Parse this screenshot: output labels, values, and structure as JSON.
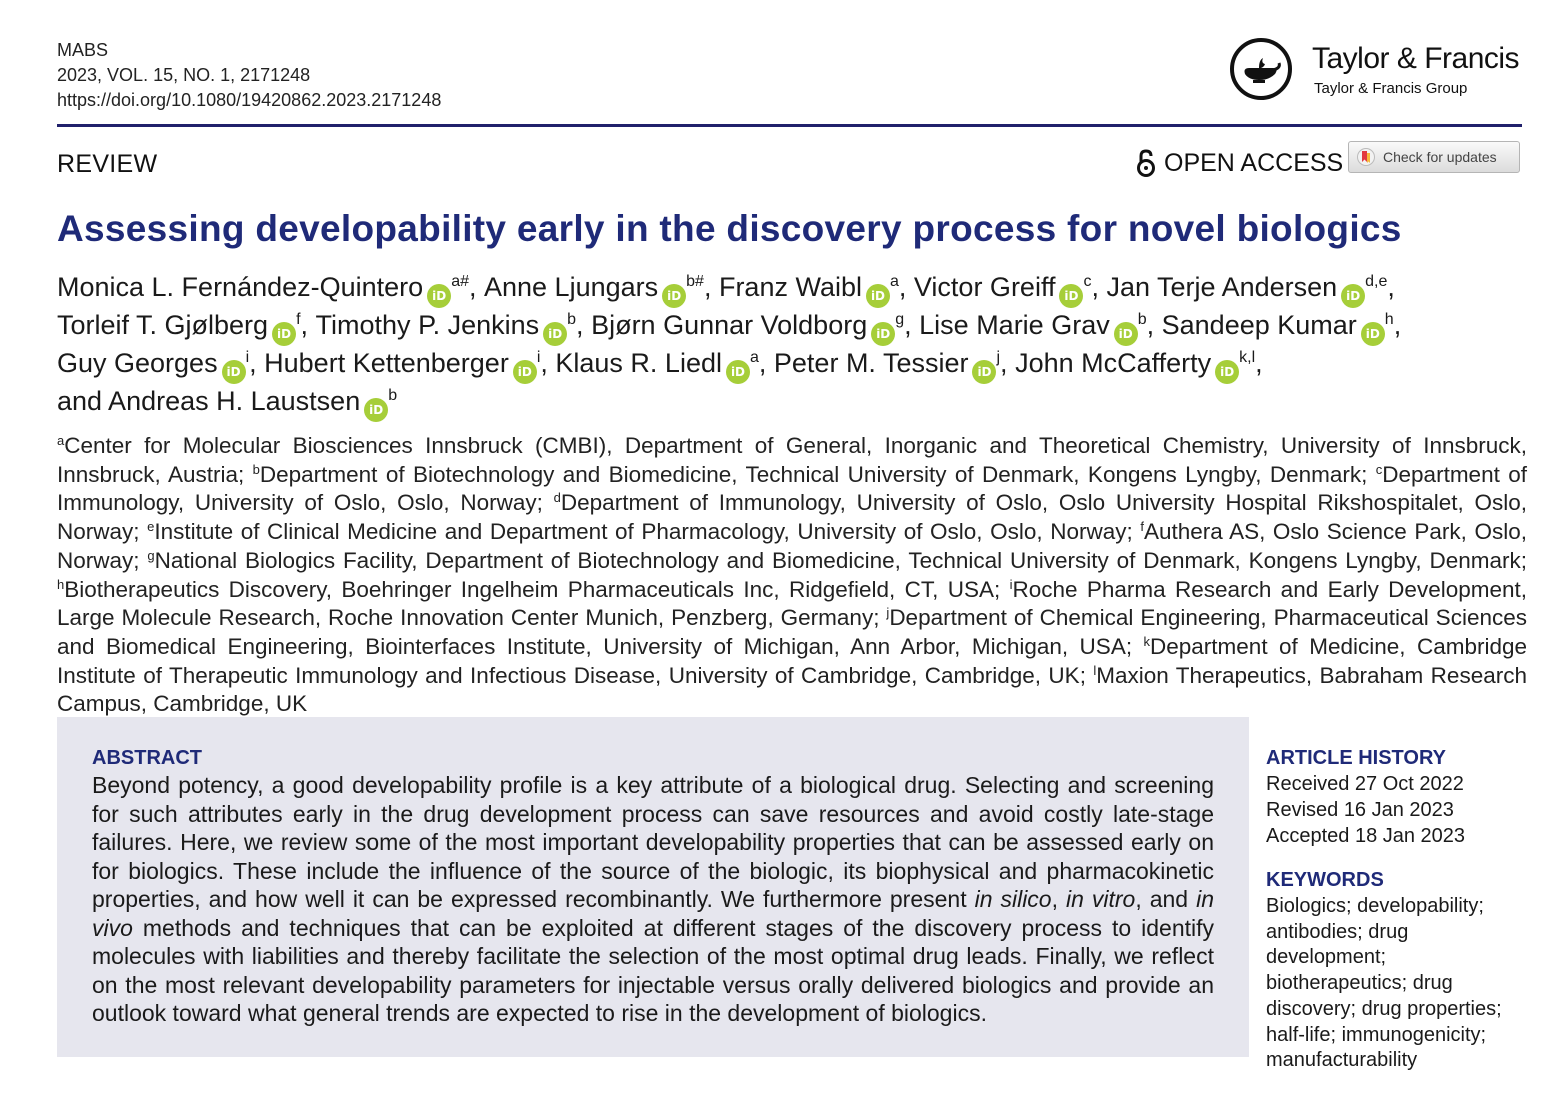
{
  "header": {
    "journal": "MABS",
    "volume_line": "2023, VOL. 15, NO. 1, 2171248",
    "doi": "https://doi.org/10.1080/19420862.2023.2171248",
    "publisher_name": "Taylor & Francis",
    "publisher_group": "Taylor & Francis Group"
  },
  "article_type": "REVIEW",
  "open_access_label": "OPEN ACCESS",
  "check_updates_label": "Check for updates",
  "title": "Assessing developability early in the discovery process for novel biologics",
  "orcid_badge": "iD",
  "authors": [
    {
      "name": "Monica L. Fernández-Quintero",
      "sup": "a#",
      "sep": ", "
    },
    {
      "name": "Anne Ljungars",
      "sup": "b#",
      "sep": ", "
    },
    {
      "name": "Franz Waibl",
      "sup": "a",
      "sep": ", "
    },
    {
      "name": "Victor Greiff",
      "sup": "c",
      "sep": ", "
    },
    {
      "name": "Jan Terje Andersen",
      "sup": "d,e",
      "sep": ", "
    },
    {
      "name": "Torleif T. Gjølberg",
      "sup": "f",
      "sep": ", "
    },
    {
      "name": "Timothy P. Jenkins",
      "sup": "b",
      "sep": ", "
    },
    {
      "name": "Bjørn Gunnar Voldborg",
      "sup": "g",
      "sep": ", "
    },
    {
      "name": "Lise Marie Grav",
      "sup": "b",
      "sep": ", "
    },
    {
      "name": "Sandeep Kumar",
      "sup": "h",
      "sep": ", "
    },
    {
      "name": "Guy Georges",
      "sup": "i",
      "sep": ", "
    },
    {
      "name": "Hubert Kettenberger",
      "sup": "i",
      "sep": ", "
    },
    {
      "name": "Klaus R. Liedl",
      "sup": "a",
      "sep": ", "
    },
    {
      "name": "Peter M. Tessier",
      "sup": "j",
      "sep": ", "
    },
    {
      "name": "John McCafferty",
      "sup": "k,l",
      "sep": ","
    },
    {
      "name": "and Andreas H. Laustsen",
      "sup": "b",
      "sep": ""
    }
  ],
  "affiliations": [
    {
      "sup": "a",
      "text": "Center for Molecular Biosciences Innsbruck (CMBI), Department of General, Inorganic and Theoretical Chemistry, University of Innsbruck, Innsbruck, Austria; "
    },
    {
      "sup": "b",
      "text": "Department of Biotechnology and Biomedicine, Technical University of Denmark, Kongens Lyngby, Denmark; "
    },
    {
      "sup": "c",
      "text": "Department of Immunology, University of Oslo, Oslo, Norway; "
    },
    {
      "sup": "d",
      "text": "Department of Immunology, University of Oslo, Oslo University Hospital Rikshospitalet, Oslo, Norway; "
    },
    {
      "sup": "e",
      "text": "Institute of Clinical Medicine and Department of Pharmacology, University of Oslo, Oslo, Norway; "
    },
    {
      "sup": "f",
      "text": "Authera AS, Oslo Science Park, Oslo, Norway; "
    },
    {
      "sup": "g",
      "text": "National Biologics Facility, Department of Biotechnology and Biomedicine, Technical University of Denmark, Kongens Lyngby, Denmark; "
    },
    {
      "sup": "h",
      "text": "Biotherapeutics Discovery, Boehringer Ingelheim Pharmaceuticals Inc, Ridgefield, CT, USA; "
    },
    {
      "sup": "i",
      "text": "Roche Pharma Research and Early Development, Large Molecule Research, Roche Innovation Center Munich, Penzberg, Germany; "
    },
    {
      "sup": "j",
      "text": "Department of Chemical Engineering, Pharmaceutical Sciences and Biomedical Engineering, Biointerfaces Institute, University of Michigan, Ann Arbor, Michigan, USA; "
    },
    {
      "sup": "k",
      "text": "Department of Medicine, Cambridge Institute of Therapeutic Immunology and Infectious Disease, University of Cambridge, Cambridge, UK; "
    },
    {
      "sup": "l",
      "text": "Maxion Therapeutics, Babraham Research Campus, Cambridge, UK"
    }
  ],
  "abstract": {
    "heading": "ABSTRACT",
    "part1": "Beyond potency, a good developability profile is a key attribute of a biological drug. Selecting and screening for such attributes early in the drug development process can save resources and avoid costly late-stage failures. Here, we review some of the most important developability properties that can be assessed early on for biologics. These include the influence of the source of the biologic, its biophysical and pharmacokinetic properties, and how well it can be expressed recombinantly. We furthermore present ",
    "em1": "in silico",
    "part2": ", ",
    "em2": "in vitro",
    "part3": ", and ",
    "em3": "in vivo",
    "part4": " methods and techniques that can be exploited at different stages of the discovery process to identify molecules with liabilities and thereby facilitate the selection of the most optimal drug leads. Finally, we reflect on the most relevant developability parameters for injectable versus orally delivered biologics and provide an outlook toward what general trends are expected to rise in the development of biologics."
  },
  "history": {
    "heading": "ARTICLE HISTORY",
    "received": "Received 27 Oct 2022",
    "revised": "Revised 16 Jan 2023",
    "accepted": "Accepted 18 Jan 2023"
  },
  "keywords": {
    "heading": "KEYWORDS",
    "text": "Biologics; developability; antibodies; drug development; biotherapeutics; drug discovery; drug properties; half-life; immunogenicity; manufacturability"
  },
  "colors": {
    "title": "#1f2a78",
    "rule": "#20206b",
    "orcid": "#a6ce39",
    "abstract_bg": "#e6e6ee"
  }
}
